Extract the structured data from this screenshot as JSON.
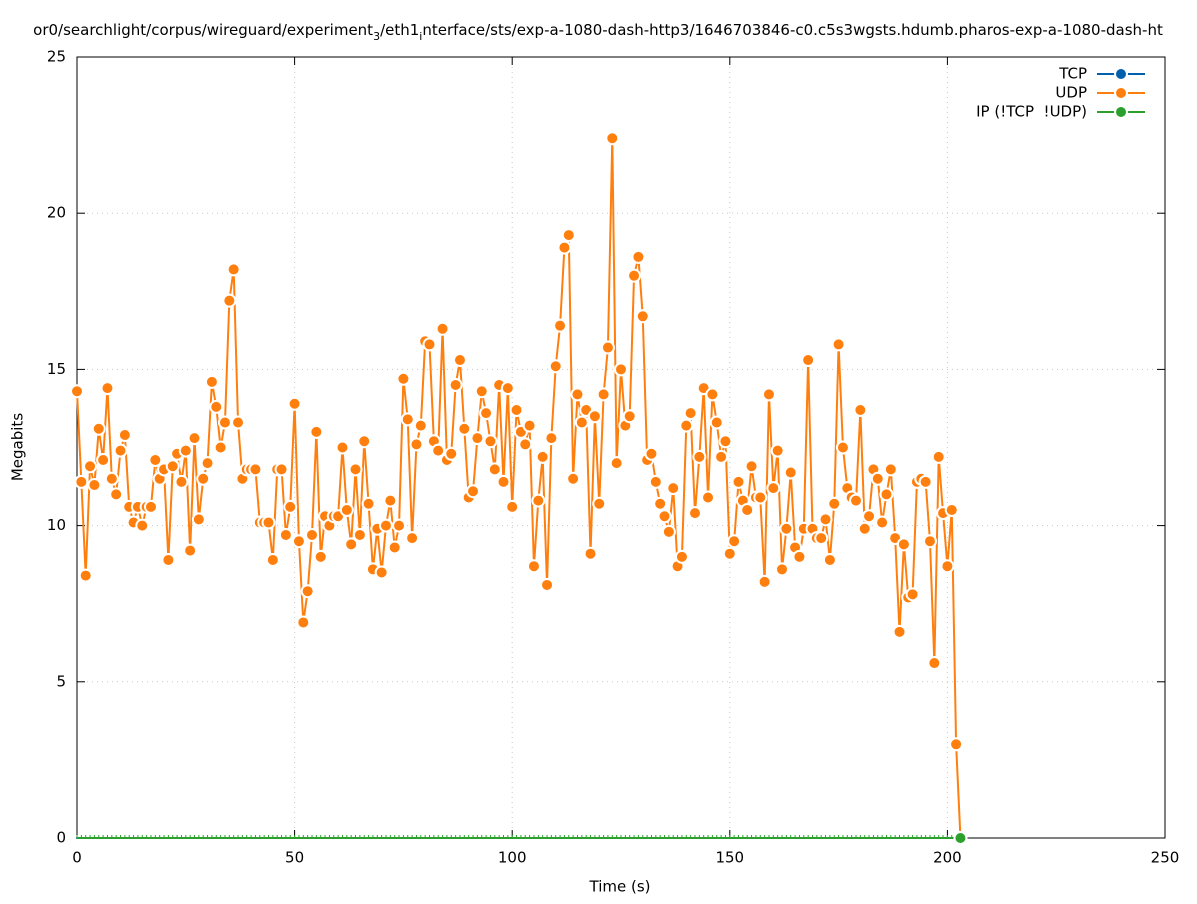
{
  "chart_data": {
    "type": "line",
    "title_parts": [
      "or0/searchlight/corpus/wireguard/experiment",
      "3",
      "/eth1",
      "i",
      "nterface/sts/exp-a-1080-dash-http3/1646703846-c0.c5s3wgsts.hdumb.pharos-exp-a-1080-dash-ht"
    ],
    "x_label": "Time (s)",
    "y_label": "Megabits",
    "xlim": [
      0,
      250
    ],
    "xticks": [
      0,
      50,
      100,
      150,
      200,
      250
    ],
    "ylim": [
      0,
      25
    ],
    "yticks": [
      0,
      5,
      10,
      15,
      20,
      25
    ],
    "grid": true,
    "legend": "top-right",
    "x": [
      0,
      1,
      2,
      3,
      4,
      5,
      6,
      7,
      8,
      9,
      10,
      11,
      12,
      13,
      14,
      15,
      16,
      17,
      18,
      19,
      20,
      21,
      22,
      23,
      24,
      25,
      26,
      27,
      28,
      29,
      30,
      31,
      32,
      33,
      34,
      35,
      36,
      37,
      38,
      39,
      40,
      41,
      42,
      43,
      44,
      45,
      46,
      47,
      48,
      49,
      50,
      51,
      52,
      53,
      54,
      55,
      56,
      57,
      58,
      59,
      60,
      61,
      62,
      63,
      64,
      65,
      66,
      67,
      68,
      69,
      70,
      71,
      72,
      73,
      74,
      75,
      76,
      77,
      78,
      79,
      80,
      81,
      82,
      83,
      84,
      85,
      86,
      87,
      88,
      89,
      90,
      91,
      92,
      93,
      94,
      95,
      96,
      97,
      98,
      99,
      100,
      101,
      102,
      103,
      104,
      105,
      106,
      107,
      108,
      109,
      110,
      111,
      112,
      113,
      114,
      115,
      116,
      117,
      118,
      119,
      120,
      121,
      122,
      123,
      124,
      125,
      126,
      127,
      128,
      129,
      130,
      131,
      132,
      133,
      134,
      135,
      136,
      137,
      138,
      139,
      140,
      141,
      142,
      143,
      144,
      145,
      146,
      147,
      148,
      149,
      150,
      151,
      152,
      153,
      154,
      155,
      156,
      157,
      158,
      159,
      160,
      161,
      162,
      163,
      164,
      165,
      166,
      167,
      168,
      169,
      170,
      171,
      172,
      173,
      174,
      175,
      176,
      177,
      178,
      179,
      180,
      181,
      182,
      183,
      184,
      185,
      186,
      187,
      188,
      189,
      190,
      191,
      192,
      193,
      194,
      195,
      196,
      197,
      198,
      199,
      200,
      201,
      202,
      203
    ],
    "series": [
      {
        "name": "TCP",
        "color": "#0060ad",
        "values": [
          0,
          0,
          0,
          0,
          0,
          0,
          0,
          0,
          0,
          0,
          0,
          0,
          0,
          0,
          0,
          0,
          0,
          0,
          0,
          0,
          0,
          0,
          0,
          0,
          0,
          0,
          0,
          0,
          0,
          0,
          0,
          0,
          0,
          0,
          0,
          0,
          0,
          0,
          0,
          0,
          0,
          0,
          0,
          0,
          0,
          0,
          0,
          0,
          0,
          0,
          0,
          0,
          0,
          0,
          0,
          0,
          0,
          0,
          0,
          0,
          0,
          0,
          0,
          0,
          0,
          0,
          0,
          0,
          0,
          0,
          0,
          0,
          0,
          0,
          0,
          0,
          0,
          0,
          0,
          0,
          0,
          0,
          0,
          0,
          0,
          0,
          0,
          0,
          0,
          0,
          0,
          0,
          0,
          0,
          0,
          0,
          0,
          0,
          0,
          0,
          0,
          0,
          0,
          0,
          0,
          0,
          0,
          0,
          0,
          0,
          0,
          0,
          0,
          0,
          0,
          0,
          0,
          0,
          0,
          0,
          0,
          0,
          0,
          0,
          0,
          0,
          0,
          0,
          0,
          0,
          0,
          0,
          0,
          0,
          0,
          0,
          0,
          0,
          0,
          0,
          0,
          0,
          0,
          0,
          0,
          0,
          0,
          0,
          0,
          0,
          0,
          0,
          0,
          0,
          0,
          0,
          0,
          0,
          0,
          0,
          0,
          0,
          0,
          0,
          0,
          0,
          0,
          0,
          0,
          0,
          0,
          0,
          0,
          0,
          0,
          0,
          0,
          0,
          0,
          0,
          0,
          0,
          0,
          0,
          0,
          0,
          0,
          0,
          0,
          0,
          0,
          0,
          0,
          0,
          0,
          0,
          0,
          0,
          0,
          0,
          0,
          0,
          0,
          0
        ]
      },
      {
        "name": "UDP",
        "color": "#ff7f0e",
        "values": [
          14.3,
          11.4,
          8.4,
          11.9,
          11.3,
          13.1,
          12.1,
          14.4,
          11.5,
          11.0,
          12.4,
          12.9,
          10.6,
          10.1,
          10.6,
          10.0,
          10.6,
          10.6,
          12.1,
          11.5,
          11.8,
          8.9,
          11.9,
          12.3,
          11.4,
          12.4,
          9.2,
          12.8,
          10.2,
          11.5,
          12.0,
          14.6,
          13.8,
          12.5,
          13.3,
          17.2,
          18.2,
          13.3,
          11.5,
          11.8,
          11.8,
          11.8,
          10.1,
          10.1,
          10.1,
          8.9,
          11.8,
          11.8,
          9.7,
          10.6,
          13.9,
          9.5,
          6.9,
          7.9,
          9.7,
          13.0,
          9.0,
          10.3,
          10.0,
          10.3,
          10.3,
          12.5,
          10.5,
          9.4,
          11.8,
          9.7,
          12.7,
          10.7,
          8.6,
          9.9,
          8.5,
          10.0,
          10.8,
          9.3,
          10.0,
          14.7,
          13.4,
          9.6,
          12.6,
          13.2,
          15.9,
          15.8,
          12.7,
          12.4,
          16.3,
          12.1,
          12.3,
          14.5,
          15.3,
          13.1,
          10.9,
          11.1,
          12.8,
          14.3,
          13.6,
          12.7,
          11.8,
          14.5,
          11.4,
          14.4,
          10.6,
          13.7,
          13.0,
          12.6,
          13.2,
          8.7,
          10.8,
          12.2,
          8.1,
          12.8,
          15.1,
          16.4,
          18.9,
          19.3,
          11.5,
          14.2,
          13.3,
          13.7,
          9.1,
          13.5,
          10.7,
          14.2,
          15.7,
          22.4,
          12.0,
          15.0,
          13.2,
          13.5,
          18.0,
          18.6,
          16.7,
          12.1,
          12.3,
          11.4,
          10.7,
          10.3,
          9.8,
          11.2,
          8.7,
          9.0,
          13.2,
          13.6,
          10.4,
          12.2,
          14.4,
          10.9,
          14.2,
          13.3,
          12.2,
          12.7,
          9.1,
          9.5,
          11.4,
          10.8,
          10.5,
          11.9,
          10.9,
          10.9,
          8.2,
          14.2,
          11.2,
          12.4,
          8.6,
          9.9,
          11.7,
          9.3,
          9.0,
          9.9,
          15.3,
          9.9,
          9.6,
          9.6,
          10.2,
          8.9,
          10.7,
          15.8,
          12.5,
          11.2,
          10.9,
          10.8,
          13.7,
          9.9,
          10.3,
          11.8,
          11.5,
          10.1,
          11.0,
          11.8,
          9.6,
          6.6,
          9.4,
          7.7,
          7.8,
          11.4,
          11.5,
          11.4,
          9.5,
          5.6,
          12.2,
          10.4,
          8.7,
          10.5,
          3.0,
          0
        ]
      },
      {
        "name": "IP (!TCP  !UDP)",
        "color": "#2ca02c",
        "values": [
          0,
          0,
          0,
          0,
          0,
          0,
          0,
          0,
          0,
          0,
          0,
          0,
          0,
          0,
          0,
          0,
          0,
          0,
          0,
          0,
          0,
          0,
          0,
          0,
          0,
          0,
          0,
          0,
          0,
          0,
          0,
          0,
          0,
          0,
          0,
          0,
          0,
          0,
          0,
          0,
          0,
          0,
          0,
          0,
          0,
          0,
          0,
          0,
          0,
          0,
          0,
          0,
          0,
          0,
          0,
          0,
          0,
          0,
          0,
          0,
          0,
          0,
          0,
          0,
          0,
          0,
          0,
          0,
          0,
          0,
          0,
          0,
          0,
          0,
          0,
          0,
          0,
          0,
          0,
          0,
          0,
          0,
          0,
          0,
          0,
          0,
          0,
          0,
          0,
          0,
          0,
          0,
          0,
          0,
          0,
          0,
          0,
          0,
          0,
          0,
          0,
          0,
          0,
          0,
          0,
          0,
          0,
          0,
          0,
          0,
          0,
          0,
          0,
          0,
          0,
          0,
          0,
          0,
          0,
          0,
          0,
          0,
          0,
          0,
          0,
          0,
          0,
          0,
          0,
          0,
          0,
          0,
          0,
          0,
          0,
          0,
          0,
          0,
          0,
          0,
          0,
          0,
          0,
          0,
          0,
          0,
          0,
          0,
          0,
          0,
          0,
          0,
          0,
          0,
          0,
          0,
          0,
          0,
          0,
          0,
          0,
          0,
          0,
          0,
          0,
          0,
          0,
          0,
          0,
          0,
          0,
          0,
          0,
          0,
          0,
          0,
          0,
          0,
          0,
          0,
          0,
          0,
          0,
          0,
          0,
          0,
          0,
          0,
          0,
          0,
          0,
          0,
          0,
          0,
          0,
          0,
          0,
          0,
          0,
          0,
          0,
          0,
          0,
          0
        ]
      }
    ]
  }
}
